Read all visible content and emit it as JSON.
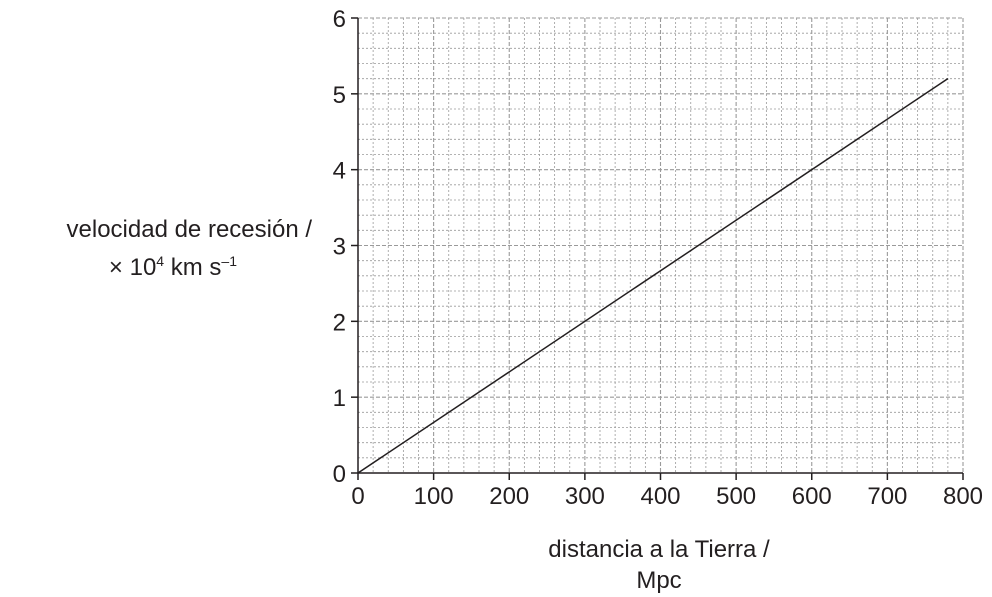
{
  "chart_data": {
    "type": "line",
    "xlabel_line1": "distancia a la Tierra /",
    "xlabel_line2": "Mpc",
    "ylabel_line1": "velocidad de recesión /",
    "ylabel_times": "× 10",
    "ylabel_exp": "4",
    "ylabel_units": " km s",
    "ylabel_units_exp": "–1",
    "xlim": [
      0,
      800
    ],
    "ylim": [
      0,
      6
    ],
    "xticks": [
      0,
      100,
      200,
      300,
      400,
      500,
      600,
      700,
      800
    ],
    "yticks": [
      0,
      1,
      2,
      3,
      4,
      5,
      6
    ],
    "x_minor_step": 20,
    "y_minor_step": 0.2,
    "grid": true,
    "series": [
      {
        "x": [
          0,
          780
        ],
        "y": [
          0,
          5.2
        ],
        "color": "#231f20"
      }
    ],
    "colors": {
      "axis": "#231f20",
      "grid": "#9a9a9a"
    }
  }
}
